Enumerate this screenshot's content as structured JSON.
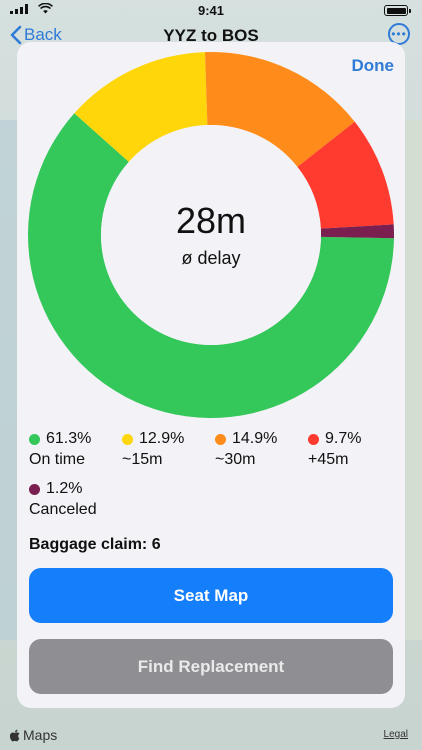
{
  "status_bar": {
    "time": "9:41"
  },
  "navbar": {
    "back_label": "Back",
    "title": "YYZ to BOS"
  },
  "sheet": {
    "done_label": "Done",
    "center_value": "28m",
    "center_label": "ø delay",
    "baggage": "Baggage claim: 6",
    "seat_map_label": "Seat Map",
    "find_replacement_label": "Find Replacement"
  },
  "legend": [
    {
      "percent": "61.3%",
      "label": "On time",
      "color": "#34c759"
    },
    {
      "percent": "12.9%",
      "label": "~15m",
      "color": "#ffd60a"
    },
    {
      "percent": "14.9%",
      "label": "~30m",
      "color": "#ff8c1a"
    },
    {
      "percent": "9.7%",
      "label": "+45m",
      "color": "#ff3b30"
    },
    {
      "percent": "1.2%",
      "label": "Canceled",
      "color": "#7a1f4f"
    }
  ],
  "chart_data": {
    "type": "pie",
    "categories": [
      "On time",
      "~15m",
      "~30m",
      "+45m",
      "Canceled"
    ],
    "values": [
      61.3,
      12.9,
      14.9,
      9.7,
      1.2
    ],
    "colors": [
      "#34c759",
      "#ffd60a",
      "#ff8c1a",
      "#ff3b30",
      "#7a1f4f"
    ]
  },
  "footer": {
    "maps_label": "Maps",
    "legal_label": "Legal"
  },
  "colors": {
    "accent": "#157efb",
    "link": "#2f7bd6",
    "disabled": "#8e8e93"
  }
}
